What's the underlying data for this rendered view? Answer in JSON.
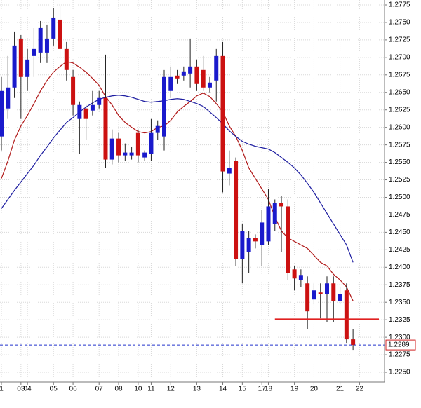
{
  "chart_data": {
    "type": "candlestick",
    "categories": [
      "1",
      null,
      null,
      "03",
      "04",
      null,
      null,
      null,
      "05",
      null,
      null,
      "06",
      null,
      null,
      null,
      "07",
      null,
      null,
      "08",
      null,
      null,
      "10",
      null,
      "11",
      null,
      null,
      "12",
      null,
      null,
      null,
      "13",
      null,
      null,
      null,
      "14",
      null,
      null,
      "15",
      null,
      null,
      "17",
      "18",
      null,
      null,
      null,
      "19",
      null,
      null,
      "20",
      null,
      null,
      null,
      "21",
      null,
      null,
      "22"
    ],
    "open": [
      1.2587,
      1.2627,
      1.2657,
      1.2727,
      1.2672,
      1.2702,
      1.2707,
      1.2707,
      1.2727,
      1.2754,
      1.2712,
      1.2672,
      1.2612,
      1.2627,
      1.2624,
      1.2632,
      1.2642,
      1.2554,
      1.2584,
      1.256,
      1.256,
      1.2592,
      1.2557,
      1.2562,
      1.2592,
      1.2587,
      1.2652,
      1.2674,
      1.2674,
      1.2677,
      1.2687,
      1.2682,
      1.2657,
      1.2667,
      1.2702,
      1.2534,
      1.2552,
      1.2412,
      1.2422,
      1.2442,
      1.2432,
      1.2437,
      1.2462,
      1.2492,
      1.2487,
      1.2397,
      1.2382,
      1.2377,
      1.2354,
      1.2364,
      1.2362,
      1.2377,
      1.2352,
      1.2367,
      1.2297,
      null
    ],
    "high": [
      1.2672,
      1.2702,
      1.2737,
      1.2732,
      1.2712,
      1.2742,
      1.2752,
      1.2747,
      1.277,
      1.2774,
      1.2722,
      1.2682,
      1.2637,
      1.2632,
      1.2652,
      1.2652,
      1.2704,
      1.2597,
      1.2592,
      1.2577,
      1.2572,
      1.2597,
      1.2567,
      1.2612,
      1.261,
      1.2682,
      1.2687,
      1.2682,
      1.2687,
      1.2727,
      1.2697,
      1.2702,
      1.2672,
      1.2712,
      1.2722,
      1.2567,
      1.2557,
      1.2462,
      1.2452,
      1.2447,
      1.2482,
      1.2512,
      1.2497,
      1.2502,
      1.2497,
      1.2402,
      1.2397,
      1.2387,
      1.2377,
      1.2377,
      1.2387,
      1.2387,
      1.2372,
      1.2377,
      1.2312,
      null
    ],
    "low": [
      1.2567,
      1.2612,
      1.2642,
      1.2612,
      1.2652,
      1.2672,
      1.2692,
      1.2692,
      1.2717,
      1.2697,
      1.2667,
      1.2617,
      1.2562,
      1.2582,
      1.2617,
      1.2627,
      1.2542,
      1.2547,
      1.255,
      1.2552,
      1.2554,
      1.255,
      1.2552,
      1.2552,
      1.2582,
      1.2567,
      1.2642,
      1.2662,
      1.2667,
      1.2657,
      1.2652,
      1.2652,
      1.265,
      1.2637,
      1.2507,
      1.2517,
      1.2402,
      1.2377,
      1.2392,
      1.2427,
      1.2402,
      1.2432,
      1.2452,
      1.2422,
      1.2382,
      1.2367,
      1.2372,
      1.2312,
      1.2347,
      1.2327,
      1.2322,
      1.2322,
      1.2347,
      1.2292,
      1.2282,
      null
    ],
    "close": [
      1.2652,
      1.2657,
      1.2717,
      1.2672,
      1.2697,
      1.2712,
      1.2742,
      1.2727,
      1.2757,
      1.2712,
      1.2682,
      1.2632,
      1.2632,
      1.2612,
      1.2632,
      1.2642,
      1.2554,
      1.2584,
      1.256,
      1.2564,
      1.2564,
      1.256,
      1.2564,
      1.2592,
      1.2602,
      1.2672,
      1.2672,
      1.267,
      1.268,
      1.2687,
      1.2662,
      1.2657,
      1.2664,
      1.2702,
      1.2537,
      1.2542,
      1.2412,
      1.2452,
      1.2442,
      1.2437,
      1.2464,
      1.2487,
      1.2492,
      1.2487,
      1.2392,
      1.2384,
      1.2389,
      1.2337,
      1.2367,
      1.2362,
      1.2377,
      1.2352,
      1.2362,
      1.2297,
      1.2289,
      null
    ],
    "up_color": "#1a1acc",
    "down_color": "#cc1111",
    "moving_averages": [
      {
        "color": "#b01818",
        "values": [
          1.2527,
          1.2552,
          1.2582,
          1.2602,
          1.2617,
          1.2634,
          1.2652,
          1.2667,
          1.2679,
          1.2687,
          1.2694,
          1.2692,
          1.2686,
          1.2679,
          1.267,
          1.266,
          1.2644,
          1.2632,
          1.2617,
          1.2607,
          1.26,
          1.2594,
          1.2592,
          1.2594,
          1.26,
          1.2602,
          1.261,
          1.2622,
          1.263,
          1.2637,
          1.2645,
          1.2649,
          1.2644,
          1.2634,
          1.2622,
          1.2602,
          1.2587,
          1.2567,
          1.2542,
          1.2527,
          1.2512,
          1.2497,
          1.2472,
          1.2452,
          1.2442,
          1.2437,
          1.2432,
          1.2427,
          1.2417,
          1.2407,
          1.2402,
          1.239,
          1.2382,
          1.2372,
          1.2352,
          null
        ]
      },
      {
        "color": "#1c1ca0",
        "values": [
          1.2484,
          1.2497,
          1.251,
          1.2522,
          1.2534,
          1.2546,
          1.256,
          1.2572,
          1.2585,
          1.2596,
          1.2607,
          1.2614,
          1.2622,
          1.2629,
          1.2635,
          1.264,
          1.2643,
          1.2645,
          1.2646,
          1.2645,
          1.2643,
          1.264,
          1.2637,
          1.2636,
          1.2637,
          1.2638,
          1.264,
          1.2641,
          1.264,
          1.2637,
          1.2634,
          1.263,
          1.2622,
          1.2614,
          1.2605,
          1.2595,
          1.2587,
          1.258,
          1.2576,
          1.2573,
          1.2571,
          1.2569,
          1.2564,
          1.2557,
          1.255,
          1.2542,
          1.2532,
          1.252,
          1.2507,
          1.2492,
          1.2477,
          1.2462,
          1.2447,
          1.2432,
          1.2407,
          null
        ]
      }
    ],
    "support_line": 1.2326,
    "support_color": "#e02020",
    "current_price": 1.2289,
    "ylim": [
      1.2236,
      1.2782
    ],
    "yticks": [
      {
        "value": 1.225,
        "label": "1.2250"
      },
      1.2275,
      {
        "value": 1.23,
        "label": "1.2300"
      },
      1.2325,
      {
        "value": 1.235,
        "label": "1.2350"
      },
      1.2375,
      {
        "value": 1.24,
        "label": "1.2400"
      },
      1.2425,
      {
        "value": 1.245,
        "label": "1.2450"
      },
      1.2475,
      {
        "value": 1.25,
        "label": "1.2500"
      },
      1.2525,
      {
        "value": 1.255,
        "label": "1.2550"
      },
      1.2575,
      {
        "value": 1.26,
        "label": "1.2600"
      },
      1.2625,
      {
        "value": 1.265,
        "label": "1.2650"
      },
      1.2675,
      {
        "value": 1.27,
        "label": "1.2700"
      },
      1.2725,
      {
        "value": 1.275,
        "label": "1.2750"
      },
      1.2775
    ],
    "grid": true
  }
}
